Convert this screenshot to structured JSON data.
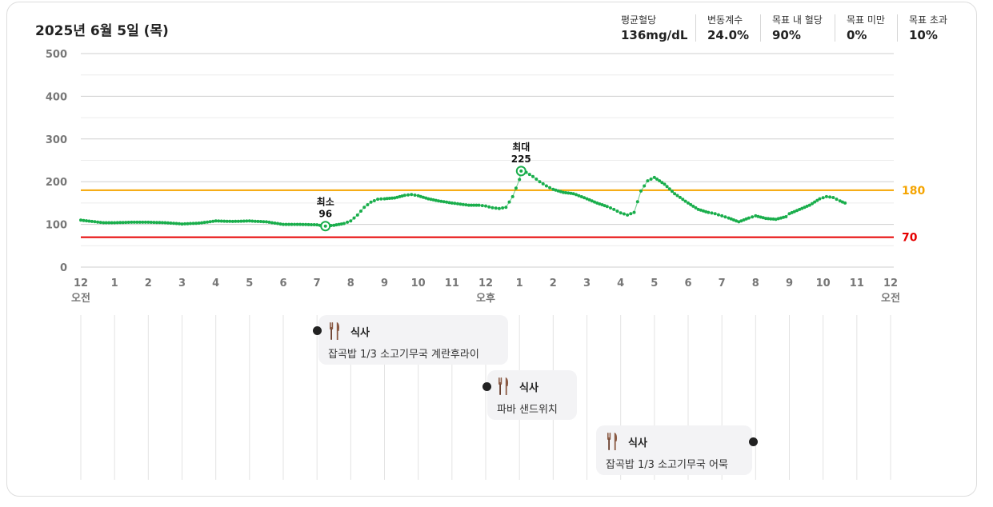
{
  "header": {
    "date": "2025년 6월 5일 (목)",
    "stats": [
      {
        "label": "평균혈당",
        "value": "136mg/dL"
      },
      {
        "label": "변동계수",
        "value": "24.0%"
      },
      {
        "label": "목표 내 혈당",
        "value": "90%"
      },
      {
        "label": "목표 미만",
        "value": "0%"
      },
      {
        "label": "목표 초과",
        "value": "10%"
      }
    ]
  },
  "colors": {
    "line": "#1aae4c",
    "upper_ref": "#f5a400",
    "lower_ref": "#e60000",
    "grid": "#e3e3e3",
    "meal_dot": "#222222"
  },
  "chart_data": {
    "type": "line",
    "xlabel": "",
    "ylabel": "",
    "ylim": [
      0,
      500
    ],
    "yticks": [
      0,
      100,
      200,
      300,
      400,
      500
    ],
    "xlim": [
      0,
      24
    ],
    "xtick_labels": [
      "12",
      "1",
      "2",
      "3",
      "4",
      "5",
      "6",
      "7",
      "8",
      "9",
      "10",
      "11",
      "12",
      "1",
      "2",
      "3",
      "4",
      "5",
      "6",
      "7",
      "8",
      "9",
      "10",
      "11",
      "12"
    ],
    "ampm_labels": [
      {
        "hour": 0,
        "text": "오전"
      },
      {
        "hour": 12,
        "text": "오후"
      },
      {
        "hour": 24,
        "text": "오전"
      }
    ],
    "reference_lines": [
      {
        "value": 180,
        "label": "180",
        "color": "#f5a400"
      },
      {
        "value": 70,
        "label": "70",
        "color": "#e60000"
      }
    ],
    "min_marker": {
      "label": "최소",
      "value": 96,
      "hour": 7.25
    },
    "max_marker": {
      "label": "최대",
      "value": 225,
      "hour": 13.05
    },
    "series": [
      {
        "x": [
          0,
          0.33,
          0.67,
          1,
          1.5,
          2,
          2.5,
          3,
          3.5,
          4,
          4.5,
          5,
          5.5,
          6,
          6.5,
          7,
          7.25,
          7.5,
          7.8,
          8,
          8.2,
          8.4,
          8.6,
          8.8,
          9,
          9.3,
          9.6,
          9.8,
          10,
          10.3,
          10.6,
          11,
          11.5,
          11.8,
          12,
          12.2,
          12.4,
          12.6,
          12.8,
          13,
          13.05,
          13.2,
          13.4,
          13.6,
          13.8,
          14,
          14.3,
          14.6,
          15,
          15.3,
          15.6,
          15.8,
          16,
          16.2,
          16.4,
          16.6,
          16.8,
          17,
          17.3,
          17.6,
          18,
          18.3,
          18.6,
          18.8,
          19,
          19.2,
          19.5,
          19.8,
          20,
          20.3,
          20.6,
          20.9,
          21,
          21.3,
          21.6,
          21.9,
          22.1,
          22.3,
          22.5,
          22.65
        ],
        "y": [
          110,
          107,
          104,
          104,
          105,
          105,
          104,
          101,
          103,
          108,
          107,
          108,
          106,
          100,
          100,
          99,
          96,
          98,
          102,
          108,
          122,
          140,
          152,
          159,
          160,
          162,
          168,
          170,
          167,
          160,
          155,
          150,
          145,
          145,
          143,
          139,
          137,
          140,
          165,
          205,
          225,
          222,
          212,
          200,
          190,
          182,
          175,
          172,
          160,
          150,
          142,
          135,
          127,
          122,
          128,
          178,
          202,
          210,
          194,
          172,
          150,
          135,
          128,
          125,
          120,
          115,
          106,
          115,
          120,
          114,
          112,
          118,
          125,
          135,
          145,
          160,
          165,
          163,
          155,
          150
        ]
      }
    ]
  },
  "meals": [
    {
      "title": "식사",
      "desc": "잡곡밥 1/3 소고기무국 계란후라이",
      "icon": "fork-knife-icon"
    },
    {
      "title": "식사",
      "desc": "파바 샌드위치",
      "icon": "fork-knife-icon"
    },
    {
      "title": "식사",
      "desc": "잡곡밥 1/3 소고기무국 어묵",
      "icon": "fork-knife-icon"
    }
  ]
}
